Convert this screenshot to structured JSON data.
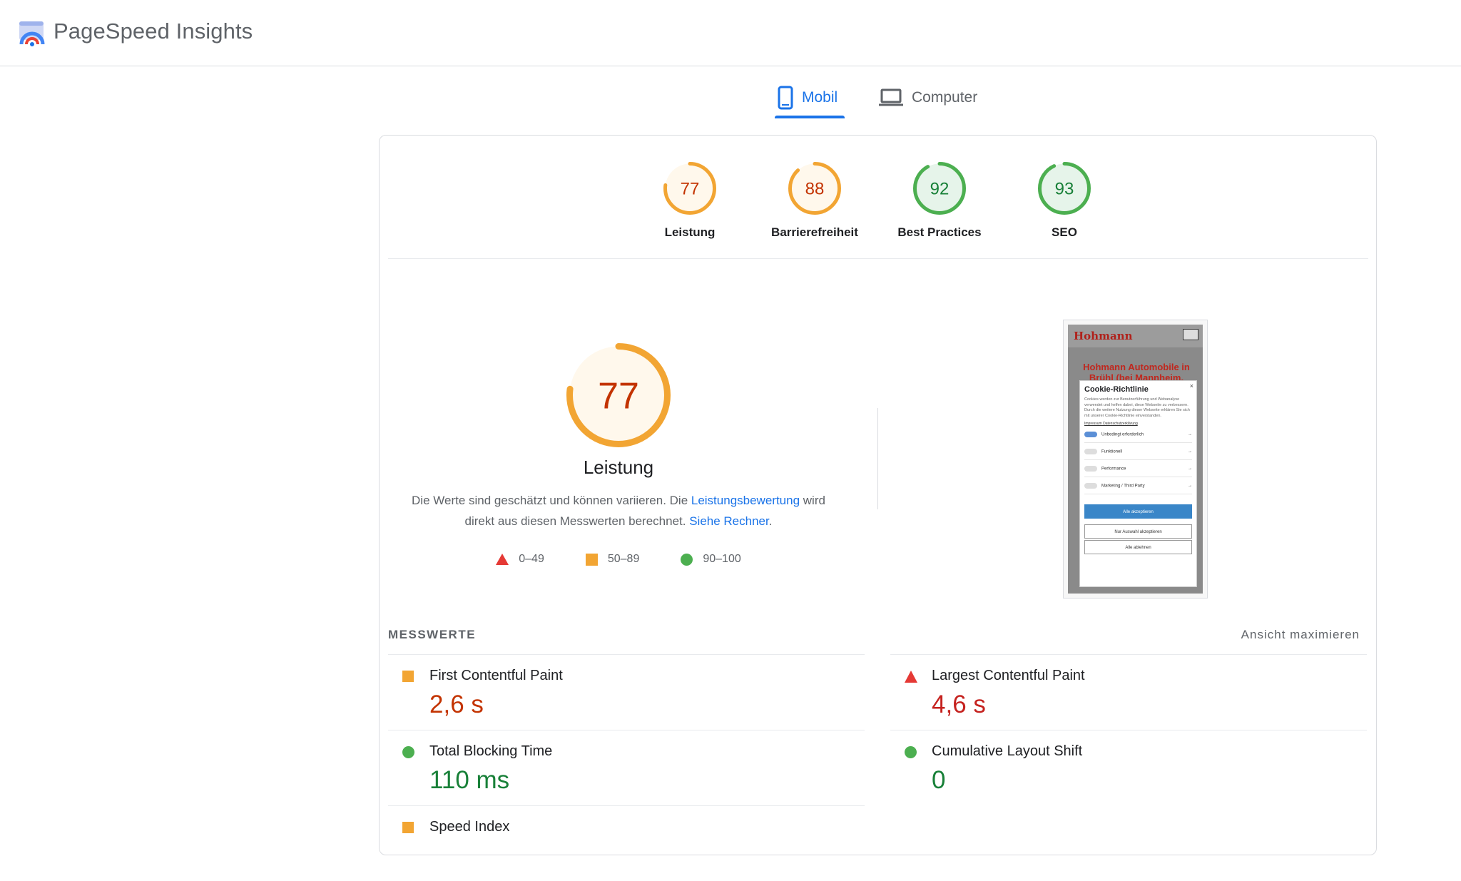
{
  "header": {
    "app_title": "PageSpeed Insights",
    "logo_icon": "pagespeed-logo-icon"
  },
  "tabs": [
    {
      "label": "Mobil",
      "icon": "smartphone-icon",
      "selected": true
    },
    {
      "label": "Computer",
      "icon": "laptop-icon",
      "selected": false
    }
  ],
  "categories": [
    {
      "score": "77",
      "label": "Leistung",
      "status": "average",
      "color": "#f2a533"
    },
    {
      "score": "88",
      "label": "Barrierefreiheit",
      "status": "average",
      "color": "#f2a533"
    },
    {
      "score": "92",
      "label": "Best Practices",
      "status": "pass",
      "color": "#4caf50"
    },
    {
      "score": "93",
      "label": "SEO",
      "status": "pass",
      "color": "#4caf50"
    }
  ],
  "performance": {
    "score": "77",
    "title": "Leistung",
    "desc_part1": "Die Werte sind geschätzt und können variieren. Die ",
    "desc_link1": "Leistungsbewertung",
    "desc_part2": " wird direkt aus diesen Messwerten berechnet. ",
    "desc_link2": "Siehe Rechner",
    "desc_part3": ".",
    "legend": [
      {
        "range": "0–49",
        "shape": "triangle",
        "color": "#e53935"
      },
      {
        "range": "50–89",
        "shape": "square",
        "color": "#f2a533"
      },
      {
        "range": "90–100",
        "shape": "circle",
        "color": "#4caf50"
      }
    ]
  },
  "screenshot": {
    "brand": "Hohmann",
    "headline": "Hohmann Automobile in Brühl (bei Mannheim.",
    "modal_title": "Cookie-Richtlinie",
    "modal_close": "×",
    "modal_body": "Cookies werden zur Benutzerführung und Webanalyse verwendet und helfen dabei, diese Webseite zu verbessern. Durch die weitere Nutzung dieser Webseite erklären Sie sich mit unserer Cookie-Richtlinie einverstanden.",
    "modal_links": "Impressum  Datenschutzerklärung",
    "toggles": [
      "Unbedingt erforderlich",
      "Funktionell",
      "Performance",
      "Marketing / Third Party"
    ],
    "btn_accept_all": "Alle akzeptieren",
    "btn_accept_selection": "Nur Auswahl akzeptieren",
    "btn_reject_all": "Alle ablehnen"
  },
  "metrics": {
    "title": "MESSWERTE",
    "expand_label": "Ansicht maximieren",
    "items": [
      {
        "name": "First Contentful Paint",
        "value": "2,6 s",
        "status": "average"
      },
      {
        "name": "Largest Contentful Paint",
        "value": "4,6 s",
        "status": "fail"
      },
      {
        "name": "Total Blocking Time",
        "value": "110 ms",
        "status": "pass"
      },
      {
        "name": "Cumulative Layout Shift",
        "value": "0",
        "status": "pass"
      },
      {
        "name": "Speed Index",
        "value": "",
        "status": "average"
      }
    ]
  }
}
